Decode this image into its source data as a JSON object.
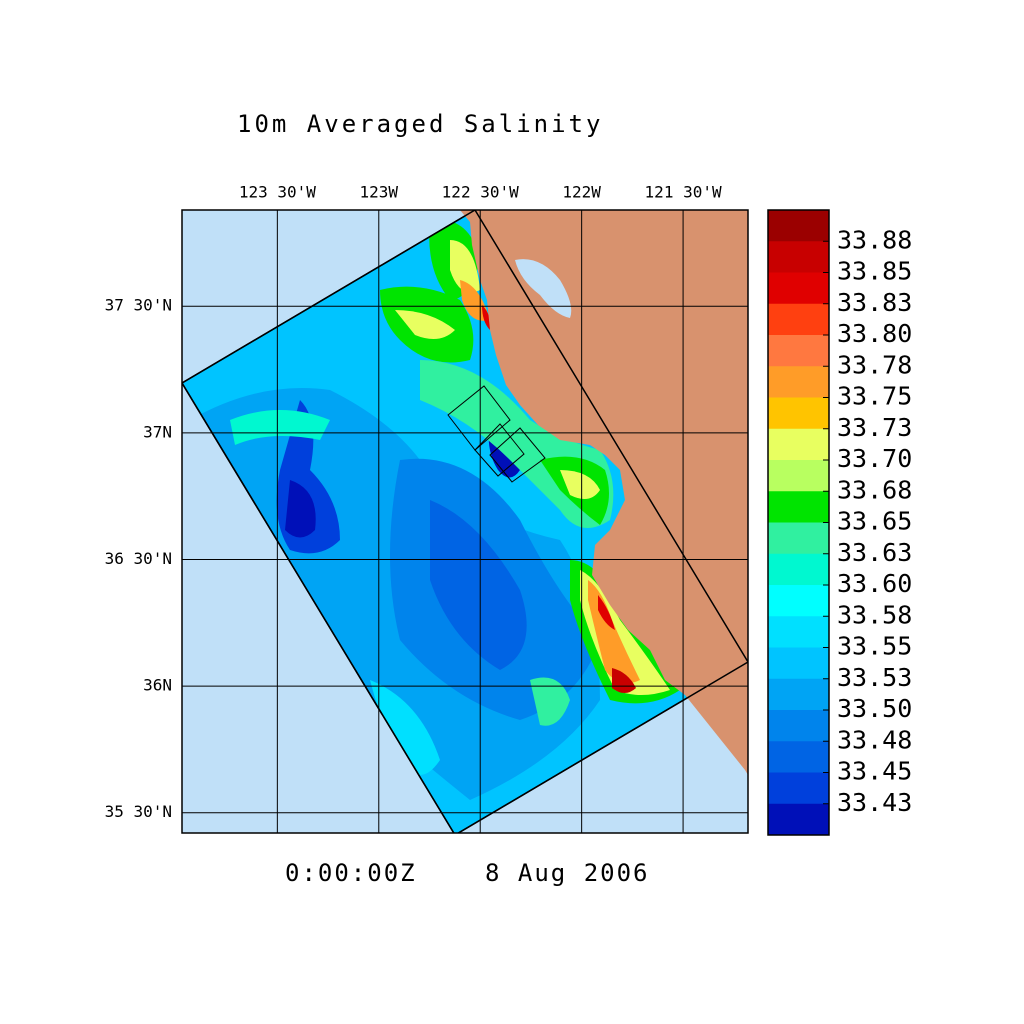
{
  "title": "10m Averaged Salinity",
  "map": {
    "xlim": [
      -123.97,
      -121.18
    ],
    "ylim": [
      35.42,
      37.88
    ],
    "xticks": [
      {
        "value": -123.5,
        "label": "123 30'W"
      },
      {
        "value": -123,
        "label": "123W"
      },
      {
        "value": -122.5,
        "label": "122 30'W"
      },
      {
        "value": -122,
        "label": "122W"
      },
      {
        "value": -121.5,
        "label": "121 30'W"
      }
    ],
    "yticks": [
      {
        "value": 37.5,
        "label": "37 30'N"
      },
      {
        "value": 37,
        "label": "37N"
      },
      {
        "value": 36.5,
        "label": "36 30'N"
      },
      {
        "value": 36,
        "label": "36N"
      },
      {
        "value": 35.5,
        "label": "35 30'N"
      }
    ],
    "ocean_color": "#c0e0f8",
    "land_color": "#d8926e"
  },
  "colorbar": {
    "levels": [
      33.88,
      33.85,
      33.83,
      {
        "value": 33.8,
        "label": "33.80"
      },
      33.78,
      33.75,
      33.73,
      {
        "value": 33.7,
        "label": "33.70"
      },
      33.68,
      33.65,
      33.63,
      {
        "value": 33.6,
        "label": "33.60"
      },
      33.58,
      33.55,
      33.53,
      {
        "value": 33.5,
        "label": "33.50"
      },
      33.48,
      33.45,
      33.43
    ],
    "colors": [
      "#9b0000",
      "#c80000",
      "#e00000",
      "#ff4010",
      "#ff7840",
      "#ff9c28",
      "#ffc400",
      "#e8ff60",
      "#b8ff60",
      "#00e400",
      "#30f0a0",
      "#00f8d0",
      "#00ffff",
      "#00e0ff",
      "#00c4ff",
      "#00a4f4",
      "#0084ec",
      "#0064e4",
      "#0040dc",
      "#0010b8"
    ]
  },
  "time": "0:00:00Z",
  "date": "8 Aug 2006"
}
